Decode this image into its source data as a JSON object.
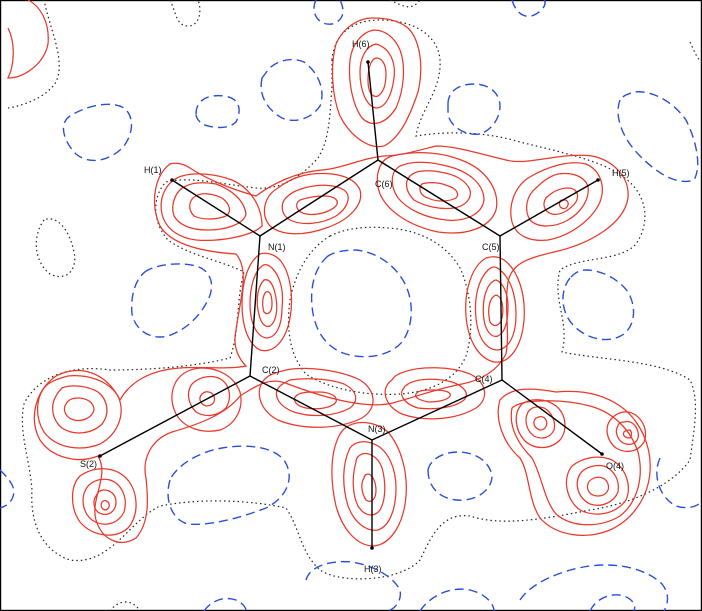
{
  "colors": {
    "positive_contour": "#e8392b",
    "negative_contour": "#2a4fd6",
    "zero_contour": "#222222",
    "bond": "#000000"
  },
  "atoms": {
    "H6": "H(6)",
    "C6": "C(6)",
    "H5": "H(5)",
    "C5": "C(5)",
    "H1": "H(1)",
    "N1": "N(1)",
    "C2": "C(2)",
    "C4": "C(4)",
    "N3": "N(3)",
    "S2": "S(2)",
    "O4": "O(4)",
    "H3": "H(3)"
  }
}
